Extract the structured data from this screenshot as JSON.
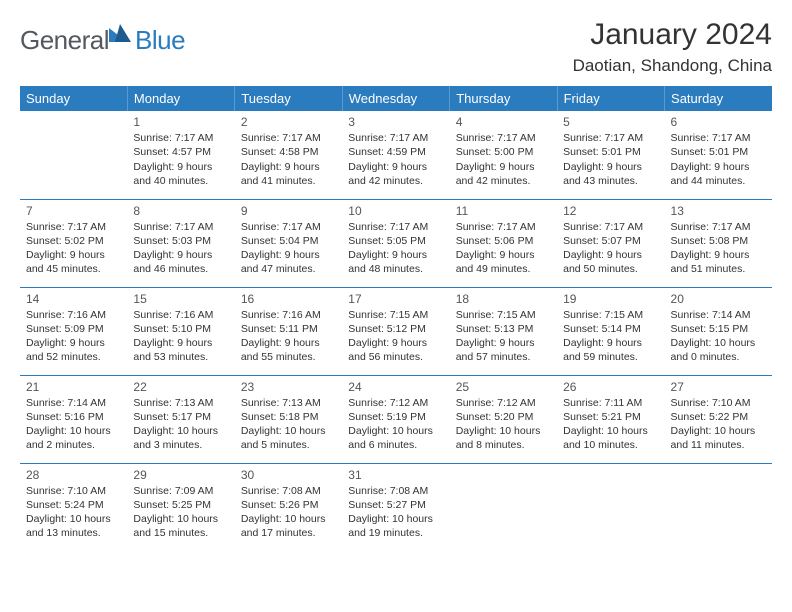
{
  "logo": {
    "text1": "General",
    "text2": "Blue"
  },
  "title": "January 2024",
  "location": "Daotian, Shandong, China",
  "weekdays": [
    "Sunday",
    "Monday",
    "Tuesday",
    "Wednesday",
    "Thursday",
    "Friday",
    "Saturday"
  ],
  "colors": {
    "header_bg": "#2b7bbf",
    "header_text": "#ffffff",
    "rule": "#2b7bbf",
    "body_text": "#333333",
    "logo_gray": "#54595f",
    "logo_blue": "#2b7bbf",
    "background": "#ffffff"
  },
  "fonts": {
    "title_size": 30,
    "location_size": 17,
    "weekday_size": 13,
    "cell_size": 10.5,
    "daynum_size": 12
  },
  "weeks": [
    [
      null,
      {
        "n": "1",
        "sr": "Sunrise: 7:17 AM",
        "ss": "Sunset: 4:57 PM",
        "d1": "Daylight: 9 hours",
        "d2": "and 40 minutes."
      },
      {
        "n": "2",
        "sr": "Sunrise: 7:17 AM",
        "ss": "Sunset: 4:58 PM",
        "d1": "Daylight: 9 hours",
        "d2": "and 41 minutes."
      },
      {
        "n": "3",
        "sr": "Sunrise: 7:17 AM",
        "ss": "Sunset: 4:59 PM",
        "d1": "Daylight: 9 hours",
        "d2": "and 42 minutes."
      },
      {
        "n": "4",
        "sr": "Sunrise: 7:17 AM",
        "ss": "Sunset: 5:00 PM",
        "d1": "Daylight: 9 hours",
        "d2": "and 42 minutes."
      },
      {
        "n": "5",
        "sr": "Sunrise: 7:17 AM",
        "ss": "Sunset: 5:01 PM",
        "d1": "Daylight: 9 hours",
        "d2": "and 43 minutes."
      },
      {
        "n": "6",
        "sr": "Sunrise: 7:17 AM",
        "ss": "Sunset: 5:01 PM",
        "d1": "Daylight: 9 hours",
        "d2": "and 44 minutes."
      }
    ],
    [
      {
        "n": "7",
        "sr": "Sunrise: 7:17 AM",
        "ss": "Sunset: 5:02 PM",
        "d1": "Daylight: 9 hours",
        "d2": "and 45 minutes."
      },
      {
        "n": "8",
        "sr": "Sunrise: 7:17 AM",
        "ss": "Sunset: 5:03 PM",
        "d1": "Daylight: 9 hours",
        "d2": "and 46 minutes."
      },
      {
        "n": "9",
        "sr": "Sunrise: 7:17 AM",
        "ss": "Sunset: 5:04 PM",
        "d1": "Daylight: 9 hours",
        "d2": "and 47 minutes."
      },
      {
        "n": "10",
        "sr": "Sunrise: 7:17 AM",
        "ss": "Sunset: 5:05 PM",
        "d1": "Daylight: 9 hours",
        "d2": "and 48 minutes."
      },
      {
        "n": "11",
        "sr": "Sunrise: 7:17 AM",
        "ss": "Sunset: 5:06 PM",
        "d1": "Daylight: 9 hours",
        "d2": "and 49 minutes."
      },
      {
        "n": "12",
        "sr": "Sunrise: 7:17 AM",
        "ss": "Sunset: 5:07 PM",
        "d1": "Daylight: 9 hours",
        "d2": "and 50 minutes."
      },
      {
        "n": "13",
        "sr": "Sunrise: 7:17 AM",
        "ss": "Sunset: 5:08 PM",
        "d1": "Daylight: 9 hours",
        "d2": "and 51 minutes."
      }
    ],
    [
      {
        "n": "14",
        "sr": "Sunrise: 7:16 AM",
        "ss": "Sunset: 5:09 PM",
        "d1": "Daylight: 9 hours",
        "d2": "and 52 minutes."
      },
      {
        "n": "15",
        "sr": "Sunrise: 7:16 AM",
        "ss": "Sunset: 5:10 PM",
        "d1": "Daylight: 9 hours",
        "d2": "and 53 minutes."
      },
      {
        "n": "16",
        "sr": "Sunrise: 7:16 AM",
        "ss": "Sunset: 5:11 PM",
        "d1": "Daylight: 9 hours",
        "d2": "and 55 minutes."
      },
      {
        "n": "17",
        "sr": "Sunrise: 7:15 AM",
        "ss": "Sunset: 5:12 PM",
        "d1": "Daylight: 9 hours",
        "d2": "and 56 minutes."
      },
      {
        "n": "18",
        "sr": "Sunrise: 7:15 AM",
        "ss": "Sunset: 5:13 PM",
        "d1": "Daylight: 9 hours",
        "d2": "and 57 minutes."
      },
      {
        "n": "19",
        "sr": "Sunrise: 7:15 AM",
        "ss": "Sunset: 5:14 PM",
        "d1": "Daylight: 9 hours",
        "d2": "and 59 minutes."
      },
      {
        "n": "20",
        "sr": "Sunrise: 7:14 AM",
        "ss": "Sunset: 5:15 PM",
        "d1": "Daylight: 10 hours",
        "d2": "and 0 minutes."
      }
    ],
    [
      {
        "n": "21",
        "sr": "Sunrise: 7:14 AM",
        "ss": "Sunset: 5:16 PM",
        "d1": "Daylight: 10 hours",
        "d2": "and 2 minutes."
      },
      {
        "n": "22",
        "sr": "Sunrise: 7:13 AM",
        "ss": "Sunset: 5:17 PM",
        "d1": "Daylight: 10 hours",
        "d2": "and 3 minutes."
      },
      {
        "n": "23",
        "sr": "Sunrise: 7:13 AM",
        "ss": "Sunset: 5:18 PM",
        "d1": "Daylight: 10 hours",
        "d2": "and 5 minutes."
      },
      {
        "n": "24",
        "sr": "Sunrise: 7:12 AM",
        "ss": "Sunset: 5:19 PM",
        "d1": "Daylight: 10 hours",
        "d2": "and 6 minutes."
      },
      {
        "n": "25",
        "sr": "Sunrise: 7:12 AM",
        "ss": "Sunset: 5:20 PM",
        "d1": "Daylight: 10 hours",
        "d2": "and 8 minutes."
      },
      {
        "n": "26",
        "sr": "Sunrise: 7:11 AM",
        "ss": "Sunset: 5:21 PM",
        "d1": "Daylight: 10 hours",
        "d2": "and 10 minutes."
      },
      {
        "n": "27",
        "sr": "Sunrise: 7:10 AM",
        "ss": "Sunset: 5:22 PM",
        "d1": "Daylight: 10 hours",
        "d2": "and 11 minutes."
      }
    ],
    [
      {
        "n": "28",
        "sr": "Sunrise: 7:10 AM",
        "ss": "Sunset: 5:24 PM",
        "d1": "Daylight: 10 hours",
        "d2": "and 13 minutes."
      },
      {
        "n": "29",
        "sr": "Sunrise: 7:09 AM",
        "ss": "Sunset: 5:25 PM",
        "d1": "Daylight: 10 hours",
        "d2": "and 15 minutes."
      },
      {
        "n": "30",
        "sr": "Sunrise: 7:08 AM",
        "ss": "Sunset: 5:26 PM",
        "d1": "Daylight: 10 hours",
        "d2": "and 17 minutes."
      },
      {
        "n": "31",
        "sr": "Sunrise: 7:08 AM",
        "ss": "Sunset: 5:27 PM",
        "d1": "Daylight: 10 hours",
        "d2": "and 19 minutes."
      },
      null,
      null,
      null
    ]
  ]
}
